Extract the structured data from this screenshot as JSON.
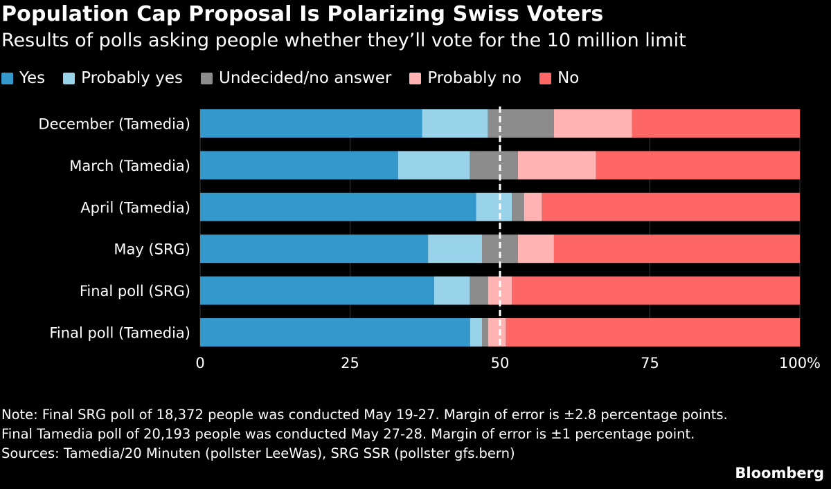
{
  "header": {
    "title": "Population Cap Proposal Is Polarizing Swiss Voters",
    "subtitle": "Results of polls asking people whether they’ll vote for the 10 million limit"
  },
  "chart_data": {
    "type": "bar",
    "orientation": "horizontal",
    "stacked": true,
    "title": "Population Cap Proposal Is Polarizing Swiss Voters",
    "subtitle": "Results of polls asking people whether they’ll vote for the 10 million limit",
    "categories": [
      "December (Tamedia)",
      "March (Tamedia)",
      "April (Tamedia)",
      "May (SRG)",
      "Final poll (SRG)",
      "Final poll (Tamedia)"
    ],
    "series": [
      {
        "name": "Yes",
        "color": "#3399cc",
        "values": [
          37,
          33,
          46,
          38,
          39,
          45
        ]
      },
      {
        "name": "Probably yes",
        "color": "#99d3ea",
        "values": [
          11,
          12,
          6,
          9,
          6,
          2
        ]
      },
      {
        "name": "Undecided/no answer",
        "color": "#8c8c8c",
        "values": [
          11,
          8,
          2,
          6,
          3,
          1
        ]
      },
      {
        "name": "Probably no",
        "color": "#ffb3b3",
        "values": [
          13,
          13,
          3,
          6,
          4,
          3
        ]
      },
      {
        "name": "No",
        "color": "#ff6666",
        "values": [
          28,
          34,
          43,
          41,
          48,
          49
        ]
      }
    ],
    "xlim": [
      0,
      100
    ],
    "x_ticks": [
      0,
      25,
      50,
      75,
      100
    ],
    "x_tick_labels": [
      "0",
      "25",
      "50",
      "75",
      "100%"
    ],
    "reference_line": 50,
    "xlabel": "",
    "ylabel": "",
    "grid": true,
    "legend_position": "top-left"
  },
  "footer": {
    "note_line1": "Note: Final SRG poll of 18,372 people was conducted May 19-27. Margin of error is ±2.8 percentage points.",
    "note_line2": "Final Tamedia poll of 20,193 people was conducted May 27-28. Margin of error is ±1 percentage point.",
    "sources": "Sources: Tamedia/20 Minuten (pollster LeeWas), SRG SSR (pollster gfs.bern)",
    "brand": "Bloomberg"
  }
}
